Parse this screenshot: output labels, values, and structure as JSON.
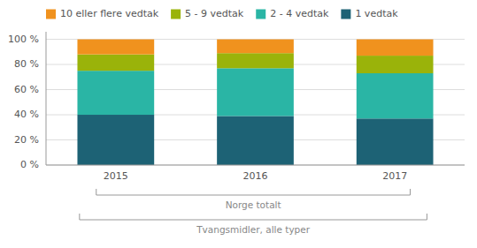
{
  "chart_data": {
    "type": "bar",
    "stacked": true,
    "categories": [
      "2015",
      "2016",
      "2017"
    ],
    "series": [
      {
        "name": "1 vedtak",
        "color": "#1d6275",
        "values": [
          40,
          39,
          37
        ]
      },
      {
        "name": "2 - 4 vedtak",
        "color": "#2ab5a5",
        "values": [
          35,
          38,
          36
        ]
      },
      {
        "name": "5 - 9 vedtak",
        "color": "#9ab30a",
        "values": [
          13,
          12,
          14
        ]
      },
      {
        "name": "10 eller flere vedtak",
        "color": "#f0921e",
        "values": [
          12,
          11,
          13
        ]
      }
    ],
    "ylim": [
      0,
      106
    ],
    "yticks": [
      {
        "value": 0,
        "label": "0 %"
      },
      {
        "value": 20,
        "label": "20 %"
      },
      {
        "value": 40,
        "label": "40 %"
      },
      {
        "value": 60,
        "label": "60 %"
      },
      {
        "value": 80,
        "label": "80 %"
      },
      {
        "value": 100,
        "label": "100 %"
      }
    ],
    "grid": true,
    "legend": "upper left",
    "annotations": [
      "Norge totalt",
      "Tvangsmidler, alle typer"
    ]
  }
}
